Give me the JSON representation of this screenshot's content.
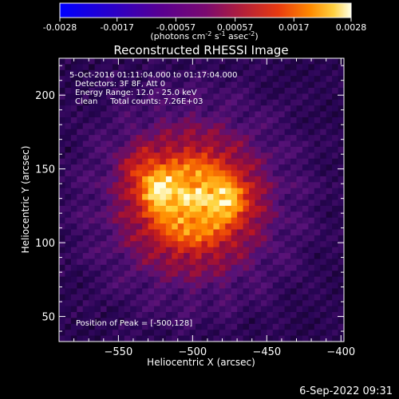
{
  "colorbar": {
    "tick_labels": [
      "-0.0028",
      "-0.0017",
      "-0.00057",
      "0.00057",
      "0.0017",
      "0.0028"
    ],
    "tick_values": [
      -0.0028,
      -0.0017,
      -0.00057,
      0.00057,
      0.0017,
      0.0028
    ],
    "range": [
      -0.0028,
      0.0028
    ],
    "units_text": "(photons cm",
    "units_sup1": "-2",
    "units_mid": " s",
    "units_sup2": "-1",
    "units_end": " asec",
    "units_sup3": "-2",
    "units_close": ")"
  },
  "chart_data": {
    "type": "heatmap",
    "title": "Reconstructed RHESSI Image",
    "xlabel": "Heliocentric X (arcsec)",
    "ylabel": "Heliocentric Y (arcsec)",
    "xlim": [
      -590,
      -398
    ],
    "ylim": [
      33,
      225
    ],
    "x_ticks": [
      -550,
      -500,
      -450,
      -400
    ],
    "y_ticks": [
      50,
      100,
      150,
      200
    ],
    "x_tick_labels": [
      "−550",
      "−500",
      "−450",
      "−400"
    ],
    "y_tick_labels": [
      "50",
      "100",
      "150",
      "200"
    ],
    "peak": {
      "x": -500,
      "y": 128
    },
    "colormap": "rhessi-fire",
    "annotations": [
      "5-Oct-2016 01:11:04.000 to 01:17:04.000",
      "Detectors: 3F 8F, Att 0",
      "Energy Range: 12.0 - 25.0 keV",
      "Clean     Total counts: 7.26E+03",
      "Position of Peak = [-500,128]"
    ]
  },
  "footer": {
    "timestamp": "6-Sep-2022 09:31"
  }
}
